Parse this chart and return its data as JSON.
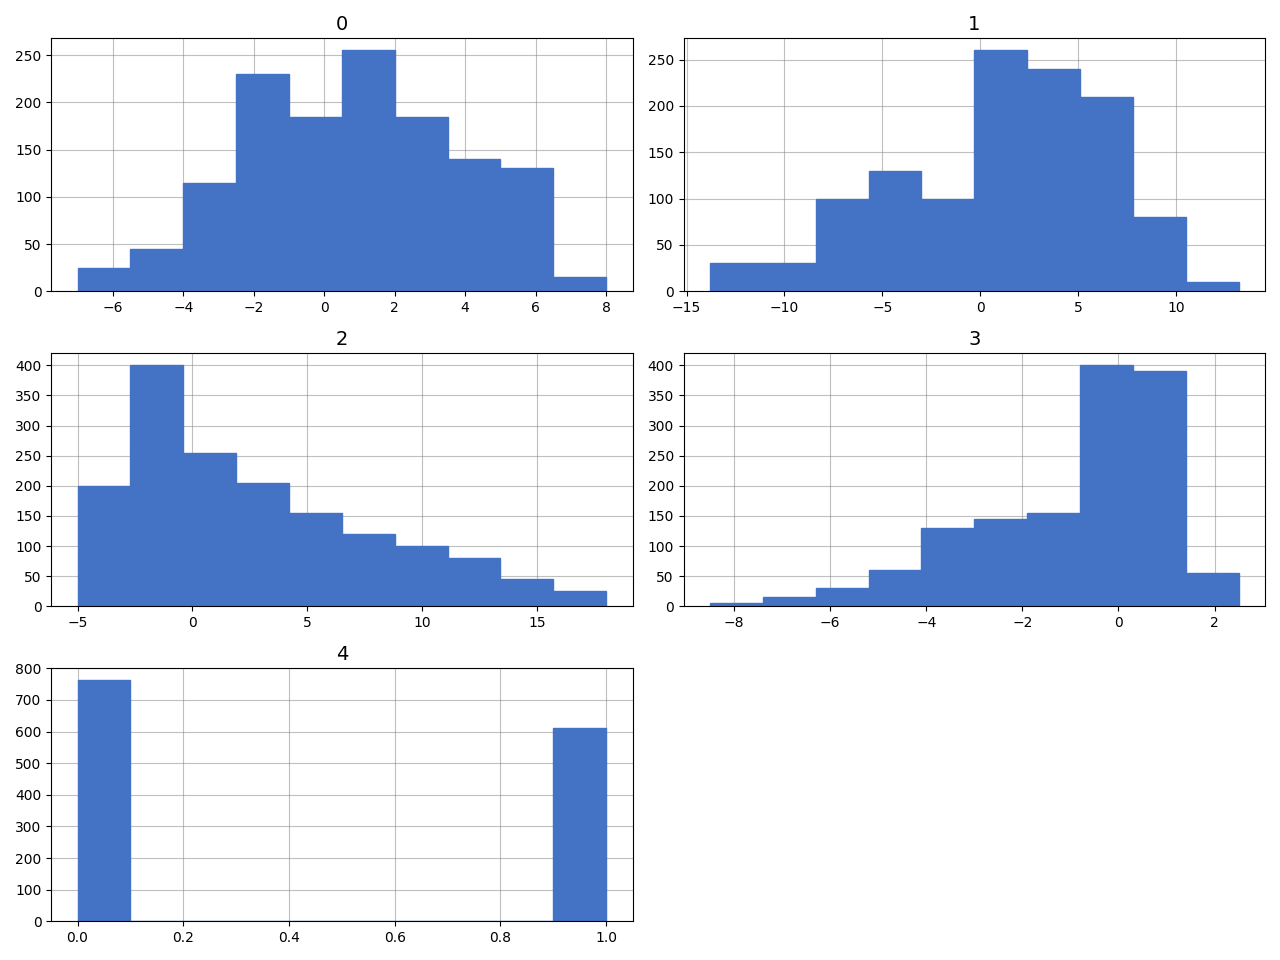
{
  "subplot_titles": [
    "0",
    "1",
    "2",
    "3",
    "4"
  ],
  "bar_color": "#4472C4",
  "bins": 10,
  "grid": true,
  "figsize": [
    12.8,
    9.6
  ],
  "grid_color": "gray",
  "grid_alpha": 0.5,
  "grid_linewidth": 0.8,
  "features": {
    "f0": {
      "bin_edges": [
        -7.0,
        -5.5,
        -4.0,
        -2.5,
        -1.0,
        0.5,
        2.0,
        3.5,
        5.0,
        6.5,
        8.0
      ],
      "counts": [
        25,
        45,
        115,
        230,
        185,
        255,
        185,
        140,
        130,
        15
      ]
    },
    "f1": {
      "bin_edges": [
        -13.8,
        -11.1,
        -8.4,
        -5.7,
        -3.0,
        -0.3,
        2.4,
        5.1,
        7.8,
        10.5,
        13.2
      ],
      "counts": [
        30,
        30,
        100,
        130,
        100,
        260,
        240,
        210,
        80,
        10
      ]
    },
    "f2": {
      "bin_edges": [
        -5.0,
        -2.7,
        -0.4,
        1.9,
        4.2,
        6.5,
        8.8,
        11.1,
        13.4,
        15.7,
        18.0
      ],
      "counts": [
        200,
        400,
        255,
        205,
        155,
        120,
        100,
        80,
        45,
        25
      ]
    },
    "f3": {
      "bin_edges": [
        -8.5,
        -7.4,
        -6.3,
        -5.2,
        -4.1,
        -3.0,
        -1.9,
        -0.8,
        0.3,
        1.4,
        2.5
      ],
      "counts": [
        5,
        15,
        30,
        60,
        130,
        145,
        155,
        400,
        390,
        55
      ]
    },
    "f4": {
      "bin_edges": [
        0.0,
        0.1,
        0.2,
        0.3,
        0.4,
        0.5,
        0.6,
        0.7,
        0.8,
        0.9,
        1.0
      ],
      "counts": [
        762,
        0,
        0,
        0,
        0,
        0,
        0,
        0,
        0,
        610
      ]
    }
  }
}
